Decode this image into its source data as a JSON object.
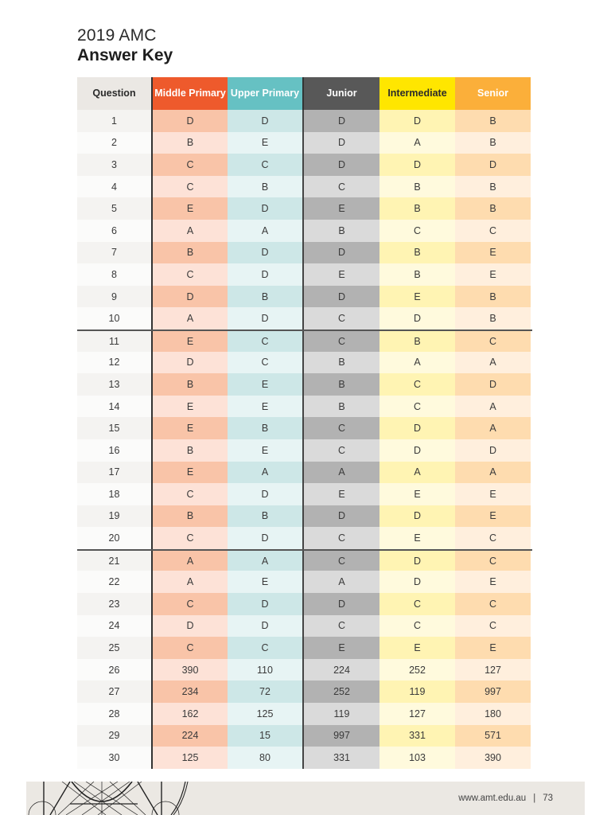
{
  "title": {
    "line1": "2019 AMC",
    "line2": "Answer Key"
  },
  "table": {
    "headers": {
      "question": "Question",
      "middle_primary": "Middle Primary",
      "upper_primary": "Upper Primary",
      "junior": "Junior",
      "intermediate": "Intermediate",
      "senior": "Senior"
    },
    "colors": {
      "question": "#ebe8e4",
      "middle_primary": "#ee5a2c",
      "upper_primary": "#66c1c3",
      "junior": "#585858",
      "intermediate": "#ffe600",
      "senior": "#fbaf3a"
    },
    "rows": [
      {
        "q": "1",
        "mp": "D",
        "up": "D",
        "jr": "D",
        "im": "D",
        "sr": "B"
      },
      {
        "q": "2",
        "mp": "B",
        "up": "E",
        "jr": "D",
        "im": "A",
        "sr": "B"
      },
      {
        "q": "3",
        "mp": "C",
        "up": "C",
        "jr": "D",
        "im": "D",
        "sr": "D"
      },
      {
        "q": "4",
        "mp": "C",
        "up": "B",
        "jr": "C",
        "im": "B",
        "sr": "B"
      },
      {
        "q": "5",
        "mp": "E",
        "up": "D",
        "jr": "E",
        "im": "B",
        "sr": "B"
      },
      {
        "q": "6",
        "mp": "A",
        "up": "A",
        "jr": "B",
        "im": "C",
        "sr": "C"
      },
      {
        "q": "7",
        "mp": "B",
        "up": "D",
        "jr": "D",
        "im": "B",
        "sr": "E"
      },
      {
        "q": "8",
        "mp": "C",
        "up": "D",
        "jr": "E",
        "im": "B",
        "sr": "E"
      },
      {
        "q": "9",
        "mp": "D",
        "up": "B",
        "jr": "D",
        "im": "E",
        "sr": "B"
      },
      {
        "q": "10",
        "mp": "A",
        "up": "D",
        "jr": "C",
        "im": "D",
        "sr": "B"
      },
      {
        "q": "11",
        "mp": "E",
        "up": "C",
        "jr": "C",
        "im": "B",
        "sr": "C"
      },
      {
        "q": "12",
        "mp": "D",
        "up": "C",
        "jr": "B",
        "im": "A",
        "sr": "A"
      },
      {
        "q": "13",
        "mp": "B",
        "up": "E",
        "jr": "B",
        "im": "C",
        "sr": "D"
      },
      {
        "q": "14",
        "mp": "E",
        "up": "E",
        "jr": "B",
        "im": "C",
        "sr": "A"
      },
      {
        "q": "15",
        "mp": "E",
        "up": "B",
        "jr": "C",
        "im": "D",
        "sr": "A"
      },
      {
        "q": "16",
        "mp": "B",
        "up": "E",
        "jr": "C",
        "im": "D",
        "sr": "D"
      },
      {
        "q": "17",
        "mp": "E",
        "up": "A",
        "jr": "A",
        "im": "A",
        "sr": "A"
      },
      {
        "q": "18",
        "mp": "C",
        "up": "D",
        "jr": "E",
        "im": "E",
        "sr": "E"
      },
      {
        "q": "19",
        "mp": "B",
        "up": "B",
        "jr": "D",
        "im": "D",
        "sr": "E"
      },
      {
        "q": "20",
        "mp": "C",
        "up": "D",
        "jr": "C",
        "im": "E",
        "sr": "C"
      },
      {
        "q": "21",
        "mp": "A",
        "up": "A",
        "jr": "C",
        "im": "D",
        "sr": "C"
      },
      {
        "q": "22",
        "mp": "A",
        "up": "E",
        "jr": "A",
        "im": "D",
        "sr": "E"
      },
      {
        "q": "23",
        "mp": "C",
        "up": "D",
        "jr": "D",
        "im": "C",
        "sr": "C"
      },
      {
        "q": "24",
        "mp": "D",
        "up": "D",
        "jr": "C",
        "im": "C",
        "sr": "C"
      },
      {
        "q": "25",
        "mp": "C",
        "up": "C",
        "jr": "E",
        "im": "E",
        "sr": "E"
      },
      {
        "q": "26",
        "mp": "390",
        "up": "110",
        "jr": "224",
        "im": "252",
        "sr": "127"
      },
      {
        "q": "27",
        "mp": "234",
        "up": "72",
        "jr": "252",
        "im": "119",
        "sr": "997"
      },
      {
        "q": "28",
        "mp": "162",
        "up": "125",
        "jr": "119",
        "im": "127",
        "sr": "180"
      },
      {
        "q": "29",
        "mp": "224",
        "up": "15",
        "jr": "997",
        "im": "331",
        "sr": "571"
      },
      {
        "q": "30",
        "mp": "125",
        "up": "80",
        "jr": "331",
        "im": "103",
        "sr": "390"
      }
    ]
  },
  "footer": {
    "url": "www.amt.edu.au",
    "separator": "|",
    "page_number": "73"
  }
}
